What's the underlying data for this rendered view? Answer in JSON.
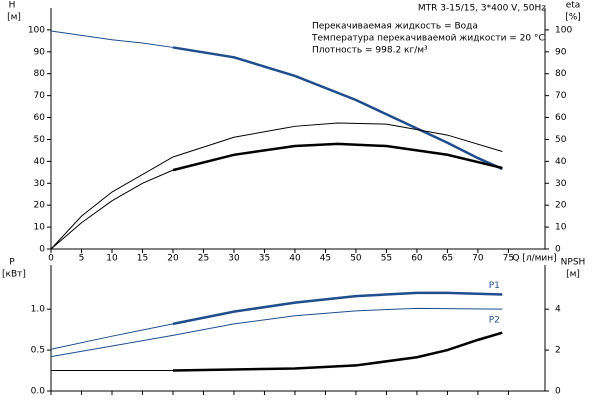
{
  "chart_data": [
    {
      "type": "line",
      "title": "MTR 3-15/15, 3*400 V, 50Hz",
      "annotations": [
        "Перекачиваемая жидкость = Вода",
        "Температура перекачиваемой жидкости = 20 °C",
        "Плотность = 998.2 кг/м³"
      ],
      "y_label": "H",
      "y_unit": "[м]",
      "y2_label": "eta",
      "y2_unit": "[%]",
      "x_label": "Q [л/мин]",
      "xlim": [
        0,
        81
      ],
      "xticks": [
        0,
        5,
        10,
        15,
        20,
        25,
        30,
        35,
        40,
        45,
        50,
        55,
        60,
        65,
        70,
        75
      ],
      "ylim": [
        0,
        110
      ],
      "yticks": [
        0,
        10,
        20,
        30,
        40,
        50,
        60,
        70,
        80,
        90,
        100
      ],
      "y2lim": [
        0,
        110
      ],
      "y2ticks": [
        0,
        10,
        20,
        30,
        40,
        50,
        60,
        70,
        80,
        90,
        100
      ],
      "series": [
        {
          "color": "#1f4e8c",
          "width": 1,
          "x": [
            0,
            5,
            10,
            15,
            20
          ],
          "values": [
            99.5,
            97.5,
            95.5,
            94,
            92
          ]
        },
        {
          "color": "#1f4e8c",
          "width": 2.5,
          "x": [
            20,
            30,
            40,
            50,
            60,
            65,
            70,
            74
          ],
          "values": [
            92,
            87.5,
            79,
            68,
            55,
            48.5,
            41.5,
            36.5
          ]
        },
        {
          "color": "#000000",
          "width": 1,
          "axis": "y2",
          "x": [
            0,
            5,
            10,
            20,
            30,
            40,
            47,
            55,
            65,
            74
          ],
          "values": [
            0,
            15,
            26,
            42,
            51,
            56,
            57.5,
            57,
            52,
            44.5
          ]
        },
        {
          "color": "#000000",
          "width": 1,
          "axis": "y2",
          "x": [
            0,
            5,
            10,
            15,
            20
          ],
          "values": [
            0,
            12,
            22,
            30,
            36
          ]
        },
        {
          "color": "#000000",
          "width": 2.5,
          "axis": "y2",
          "x": [
            20,
            30,
            40,
            47,
            55,
            65,
            74
          ],
          "values": [
            36,
            43,
            47,
            48,
            47,
            43,
            37
          ]
        }
      ]
    },
    {
      "type": "line",
      "y_label": "P",
      "y_unit": "[кВт]",
      "y2_label": "NPSH",
      "y2_unit": "[м]",
      "xlim": [
        0,
        81
      ],
      "ylim": [
        0,
        1.54
      ],
      "yticks": [
        {
          "value": 0,
          "label": "0.0"
        },
        0.5,
        {
          "value": 1,
          "label": "1.0"
        }
      ],
      "y2lim": [
        0,
        6.16
      ],
      "y2ticks": [
        0,
        2,
        4
      ],
      "series": [
        {
          "color": "#1f4e8c",
          "width": 1,
          "x": [
            0,
            10,
            20
          ],
          "values": [
            0.51,
            0.67,
            0.82
          ]
        },
        {
          "name": "P1",
          "color": "#1f4e8c",
          "width": 2.5,
          "x": [
            20,
            30,
            40,
            50,
            60,
            65,
            74
          ],
          "values": [
            0.82,
            0.97,
            1.08,
            1.16,
            1.2,
            1.2,
            1.18
          ]
        },
        {
          "name": "P2",
          "color": "#1f4e8c",
          "width": 1,
          "x": [
            0,
            10,
            20,
            30,
            40,
            50,
            60,
            74
          ],
          "values": [
            0.42,
            0.55,
            0.68,
            0.82,
            0.92,
            0.98,
            1.01,
            1.0
          ]
        },
        {
          "color": "#000000",
          "width": 1,
          "axis": "y2",
          "x": [
            0,
            10,
            20
          ],
          "values": [
            1,
            1,
            1
          ]
        },
        {
          "color": "#000000",
          "width": 2.5,
          "axis": "y2",
          "x": [
            20,
            40,
            50,
            60,
            65,
            70,
            74
          ],
          "values": [
            1,
            1.1,
            1.25,
            1.65,
            2,
            2.5,
            2.85
          ]
        }
      ]
    }
  ]
}
